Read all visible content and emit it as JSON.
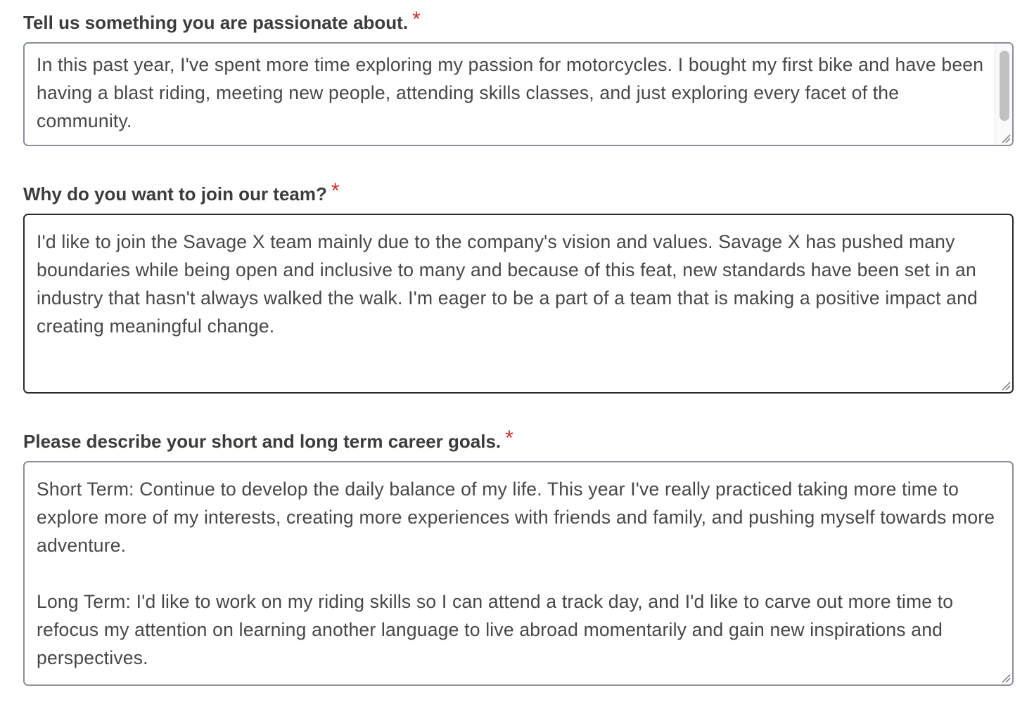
{
  "form": {
    "fields": [
      {
        "label": "Tell us something you are passionate about.",
        "required_mark": "*",
        "value": "In this past year, I've spent more time exploring my passion for motorcycles. I bought my first bike and have been having a blast riding, meeting new people, attending skills classes, and just exploring every facet of the community."
      },
      {
        "label": "Why do you want to join our team?",
        "required_mark": "*",
        "value": "I'd like to join the Savage X team mainly due to the company's vision and values. Savage X has pushed many boundaries while being open and inclusive to many and because of this feat, new standards have been set in an industry that hasn't always walked the walk. I'm eager to be a part of a team that is making a positive impact and creating meaningful change."
      },
      {
        "label": "Please describe your short and long term career goals.",
        "required_mark": "*",
        "value": "Short Term: Continue to develop the daily balance of my life. This year I've really practiced taking more time to explore more of my interests, creating more experiences with friends and family, and pushing myself towards more adventure.\n\nLong Term: I'd like to work on my riding skills so I can attend a track day, and I'd like to carve out more time to refocus my attention on learning another language to live abroad momentarily and gain new inspirations and perspectives."
      }
    ]
  },
  "icons": {
    "required": "asterisk-icon",
    "resize": "resize-grip-icon"
  },
  "colors": {
    "required": "#d32f2f",
    "label": "#3c3c3c",
    "text": "#474747",
    "border": "#8a8f98",
    "border_focused": "#2b2b2b"
  }
}
